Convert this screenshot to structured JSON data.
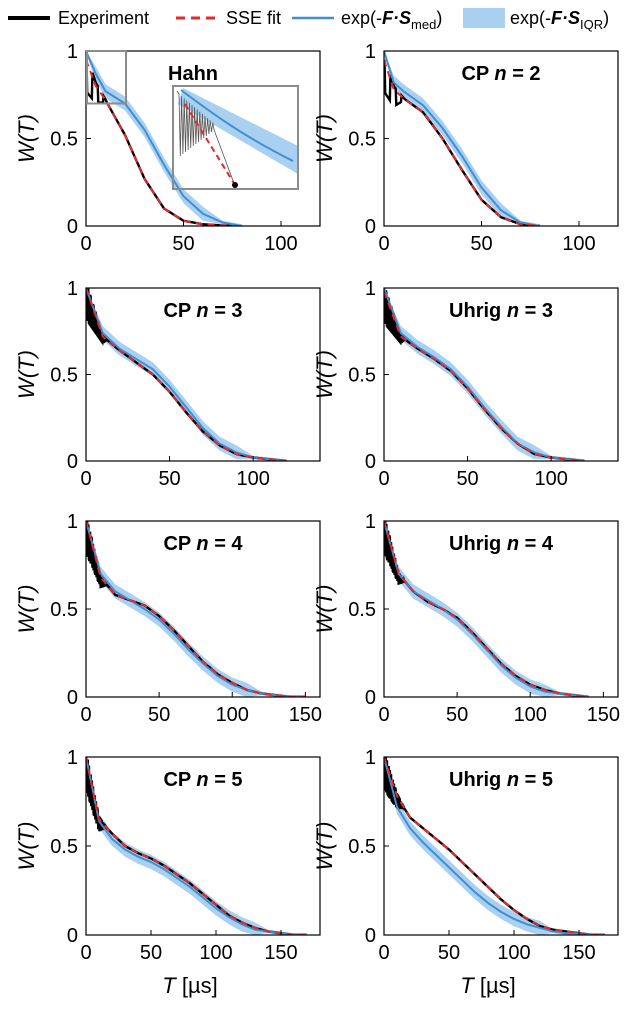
{
  "legend": {
    "experiment": "Experiment",
    "sse_fit": "SSE fit",
    "exp_med_prefix": "exp(-",
    "exp_med_bold": "F·S",
    "exp_med_sub": "med",
    "exp_med_suffix": ")",
    "exp_iqr_prefix": "exp(-",
    "exp_iqr_bold": "F·S",
    "exp_iqr_sub": "IQR",
    "exp_iqr_suffix": ")"
  },
  "colors": {
    "experiment": "#000000",
    "sse_fit": "#e8282b",
    "median": "#3f8fd2",
    "iqr": "#a9d0f0",
    "axis": "#000000",
    "inset_box": "#8c8c8c"
  },
  "axes": {
    "ylabel_prefix": "W(",
    "ylabel_var": "T",
    "ylabel_suffix": ")",
    "xlabel_var": "T",
    "xlabel_unit": " [µs]"
  },
  "chart_data": [
    {
      "type": "line",
      "title_plain": "Hahn",
      "title_n": "",
      "title_rest": "",
      "xlim": [
        0,
        120
      ],
      "ylim": [
        0,
        1
      ],
      "xticks": [
        0,
        50,
        100
      ],
      "yticks": [
        0,
        0.5,
        1
      ],
      "yticklabels": [
        "0",
        "0.5",
        "1"
      ],
      "inset": true,
      "series": [
        {
          "name": "Experiment",
          "x": [
            0,
            5,
            10,
            20,
            30,
            40,
            50,
            60,
            75
          ],
          "y": [
            0.95,
            0.8,
            0.72,
            0.52,
            0.27,
            0.1,
            0.03,
            0.01,
            0
          ]
        },
        {
          "name": "SSE fit",
          "x": [
            0,
            5,
            10,
            20,
            30,
            40,
            50,
            60,
            75
          ],
          "y": [
            0.95,
            0.8,
            0.72,
            0.52,
            0.27,
            0.1,
            0.03,
            0.01,
            0
          ]
        },
        {
          "name": "exp(-F·S_med)",
          "x": [
            0,
            5,
            10,
            20,
            30,
            40,
            50,
            60,
            70,
            80
          ],
          "y": [
            1,
            0.87,
            0.77,
            0.7,
            0.55,
            0.35,
            0.17,
            0.07,
            0.02,
            0
          ]
        }
      ]
    },
    {
      "type": "line",
      "title_plain": "CP ",
      "title_n": "n",
      "title_rest": " = 2",
      "xlim": [
        0,
        120
      ],
      "ylim": [
        0,
        1
      ],
      "xticks": [
        0,
        50,
        100
      ],
      "yticks": [
        0,
        0.5,
        1
      ],
      "yticklabels": [
        "0",
        "0.5",
        "1"
      ],
      "inset": false,
      "series": [
        {
          "name": "Experiment",
          "x": [
            0,
            5,
            10,
            20,
            30,
            40,
            50,
            60,
            70,
            80
          ],
          "y": [
            0.95,
            0.78,
            0.73,
            0.65,
            0.5,
            0.32,
            0.15,
            0.05,
            0.01,
            0
          ]
        },
        {
          "name": "SSE fit",
          "x": [
            0,
            5,
            10,
            20,
            30,
            40,
            50,
            60,
            70,
            80
          ],
          "y": [
            0.95,
            0.78,
            0.73,
            0.65,
            0.5,
            0.32,
            0.15,
            0.05,
            0.01,
            0
          ]
        },
        {
          "name": "exp(-F·S_med)",
          "x": [
            0,
            5,
            10,
            20,
            30,
            40,
            50,
            60,
            70,
            80
          ],
          "y": [
            1,
            0.82,
            0.77,
            0.69,
            0.56,
            0.4,
            0.22,
            0.09,
            0.02,
            0
          ]
        }
      ]
    },
    {
      "type": "line",
      "title_plain": "CP ",
      "title_n": "n",
      "title_rest": " = 3",
      "xlim": [
        0,
        140
      ],
      "ylim": [
        0,
        1
      ],
      "xticks": [
        0,
        50,
        100
      ],
      "yticks": [
        0,
        0.5,
        1
      ],
      "yticklabels": [
        "0",
        "0.5",
        "1"
      ],
      "inset": false,
      "series": [
        {
          "name": "Experiment",
          "x": [
            0,
            10,
            20,
            30,
            40,
            50,
            60,
            70,
            80,
            90,
            100,
            110,
            120
          ],
          "y": [
            1,
            0.72,
            0.64,
            0.57,
            0.5,
            0.4,
            0.28,
            0.17,
            0.09,
            0.04,
            0.02,
            0.01,
            0
          ]
        },
        {
          "name": "SSE fit",
          "x": [
            0,
            10,
            20,
            30,
            40,
            50,
            60,
            70,
            80,
            90,
            100,
            110,
            120
          ],
          "y": [
            1,
            0.72,
            0.64,
            0.57,
            0.5,
            0.4,
            0.28,
            0.17,
            0.09,
            0.04,
            0.02,
            0.01,
            0
          ]
        },
        {
          "name": "exp(-F·S_med)",
          "x": [
            0,
            10,
            20,
            30,
            40,
            50,
            60,
            70,
            80,
            90,
            100,
            110,
            120
          ],
          "y": [
            1,
            0.74,
            0.65,
            0.59,
            0.53,
            0.43,
            0.31,
            0.19,
            0.1,
            0.05,
            0.02,
            0.01,
            0
          ]
        }
      ]
    },
    {
      "type": "line",
      "title_plain": "Uhrig ",
      "title_n": "n",
      "title_rest": " = 3",
      "xlim": [
        0,
        140
      ],
      "ylim": [
        0,
        1
      ],
      "xticks": [
        0,
        50,
        100
      ],
      "yticks": [
        0,
        0.5,
        1
      ],
      "yticklabels": [
        "0",
        "0.5",
        "1"
      ],
      "inset": false,
      "series": [
        {
          "name": "Experiment",
          "x": [
            0,
            10,
            20,
            30,
            40,
            50,
            60,
            70,
            80,
            90,
            100,
            110,
            120
          ],
          "y": [
            0.98,
            0.72,
            0.65,
            0.59,
            0.52,
            0.42,
            0.3,
            0.19,
            0.1,
            0.04,
            0.02,
            0.01,
            0
          ]
        },
        {
          "name": "SSE fit",
          "x": [
            0,
            10,
            20,
            30,
            40,
            50,
            60,
            70,
            80,
            90,
            100,
            110,
            120
          ],
          "y": [
            0.98,
            0.72,
            0.65,
            0.59,
            0.52,
            0.42,
            0.3,
            0.19,
            0.1,
            0.04,
            0.02,
            0.01,
            0
          ]
        },
        {
          "name": "exp(-F·S_med)",
          "x": [
            0,
            10,
            20,
            30,
            40,
            50,
            60,
            70,
            80,
            90,
            100,
            110,
            120
          ],
          "y": [
            1,
            0.74,
            0.66,
            0.6,
            0.53,
            0.43,
            0.31,
            0.2,
            0.1,
            0.05,
            0.02,
            0.01,
            0
          ]
        }
      ]
    },
    {
      "type": "line",
      "title_plain": "CP ",
      "title_n": "n",
      "title_rest": " = 4",
      "xlim": [
        0,
        160
      ],
      "ylim": [
        0,
        1
      ],
      "xticks": [
        0,
        50,
        100,
        150
      ],
      "yticks": [
        0,
        0.5,
        1
      ],
      "yticklabels": [
        "0",
        "0.5",
        "1"
      ],
      "inset": false,
      "series": [
        {
          "name": "Experiment",
          "x": [
            0,
            10,
            20,
            30,
            40,
            50,
            60,
            70,
            80,
            90,
            100,
            110,
            120,
            130,
            140,
            150
          ],
          "y": [
            1,
            0.68,
            0.58,
            0.55,
            0.52,
            0.46,
            0.38,
            0.29,
            0.2,
            0.13,
            0.08,
            0.04,
            0.02,
            0.01,
            0,
            0
          ]
        },
        {
          "name": "SSE fit",
          "x": [
            0,
            10,
            20,
            30,
            40,
            50,
            60,
            70,
            80,
            90,
            100,
            110,
            120,
            130,
            140,
            150
          ],
          "y": [
            1,
            0.68,
            0.58,
            0.55,
            0.52,
            0.46,
            0.38,
            0.29,
            0.2,
            0.13,
            0.08,
            0.04,
            0.02,
            0.01,
            0,
            0
          ]
        },
        {
          "name": "exp(-F·S_med)",
          "x": [
            0,
            10,
            20,
            30,
            40,
            50,
            60,
            70,
            80,
            90,
            100,
            110,
            120,
            130,
            140,
            150
          ],
          "y": [
            1,
            0.7,
            0.6,
            0.55,
            0.5,
            0.44,
            0.36,
            0.27,
            0.19,
            0.12,
            0.07,
            0.04,
            0.02,
            0.01,
            0,
            0
          ]
        }
      ]
    },
    {
      "type": "line",
      "title_plain": "Uhrig ",
      "title_n": "n",
      "title_rest": " = 4",
      "xlim": [
        0,
        160
      ],
      "ylim": [
        0,
        1
      ],
      "xticks": [
        0,
        50,
        100,
        150
      ],
      "yticks": [
        0,
        0.5,
        1
      ],
      "yticklabels": [
        "0",
        "0.5",
        "1"
      ],
      "inset": false,
      "series": [
        {
          "name": "Experiment",
          "x": [
            0,
            10,
            20,
            30,
            40,
            50,
            60,
            70,
            80,
            90,
            100,
            110,
            120,
            130,
            140
          ],
          "y": [
            1,
            0.7,
            0.6,
            0.54,
            0.5,
            0.45,
            0.37,
            0.28,
            0.19,
            0.12,
            0.07,
            0.04,
            0.02,
            0.01,
            0
          ]
        },
        {
          "name": "SSE fit",
          "x": [
            0,
            10,
            20,
            30,
            40,
            50,
            60,
            70,
            80,
            90,
            100,
            110,
            120,
            130,
            140
          ],
          "y": [
            1,
            0.7,
            0.6,
            0.54,
            0.5,
            0.45,
            0.37,
            0.28,
            0.19,
            0.12,
            0.07,
            0.04,
            0.02,
            0.01,
            0
          ]
        },
        {
          "name": "exp(-F·S_med)",
          "x": [
            0,
            10,
            20,
            30,
            40,
            50,
            60,
            70,
            80,
            90,
            100,
            110,
            120,
            130,
            140
          ],
          "y": [
            1,
            0.7,
            0.6,
            0.55,
            0.5,
            0.44,
            0.36,
            0.27,
            0.18,
            0.11,
            0.06,
            0.03,
            0.02,
            0.01,
            0
          ]
        }
      ]
    },
    {
      "type": "line",
      "title_plain": "CP ",
      "title_n": "n",
      "title_rest": " = 5",
      "xlim": [
        0,
        180
      ],
      "ylim": [
        0,
        1
      ],
      "xticks": [
        0,
        50,
        100,
        150
      ],
      "yticks": [
        0,
        0.5,
        1
      ],
      "yticklabels": [
        "0",
        "0.5",
        "1"
      ],
      "inset": false,
      "series": [
        {
          "name": "Experiment",
          "x": [
            0,
            10,
            20,
            30,
            40,
            50,
            60,
            70,
            80,
            90,
            100,
            110,
            120,
            130,
            140,
            150,
            160,
            170
          ],
          "y": [
            1,
            0.65,
            0.57,
            0.5,
            0.46,
            0.43,
            0.39,
            0.34,
            0.29,
            0.23,
            0.17,
            0.11,
            0.07,
            0.04,
            0.02,
            0.01,
            0,
            0
          ]
        },
        {
          "name": "SSE fit",
          "x": [
            0,
            10,
            20,
            30,
            40,
            50,
            60,
            70,
            80,
            90,
            100,
            110,
            120,
            130,
            140,
            150,
            160,
            170
          ],
          "y": [
            1,
            0.65,
            0.57,
            0.5,
            0.46,
            0.43,
            0.39,
            0.34,
            0.29,
            0.23,
            0.17,
            0.11,
            0.07,
            0.04,
            0.02,
            0.01,
            0,
            0
          ]
        },
        {
          "name": "exp(-F·S_med)",
          "x": [
            0,
            10,
            20,
            30,
            40,
            50,
            60,
            70,
            80,
            90,
            100,
            110,
            120,
            130,
            140,
            150,
            160,
            170
          ],
          "y": [
            1,
            0.64,
            0.54,
            0.48,
            0.44,
            0.41,
            0.37,
            0.32,
            0.27,
            0.21,
            0.15,
            0.1,
            0.06,
            0.03,
            0.02,
            0.01,
            0,
            0
          ]
        }
      ]
    },
    {
      "type": "line",
      "title_plain": "Uhrig ",
      "title_n": "n",
      "title_rest": " = 5",
      "xlim": [
        0,
        180
      ],
      "ylim": [
        0,
        1
      ],
      "xticks": [
        0,
        50,
        100,
        150
      ],
      "yticks": [
        0,
        0.5,
        1
      ],
      "yticklabels": [
        "0",
        "0.5",
        "1"
      ],
      "inset": false,
      "series": [
        {
          "name": "Experiment",
          "x": [
            0,
            10,
            20,
            30,
            40,
            50,
            60,
            70,
            80,
            90,
            100,
            110,
            120,
            130,
            140,
            150,
            160,
            170
          ],
          "y": [
            1,
            0.78,
            0.66,
            0.6,
            0.54,
            0.48,
            0.41,
            0.34,
            0.27,
            0.2,
            0.14,
            0.09,
            0.05,
            0.03,
            0.02,
            0.01,
            0,
            0
          ]
        },
        {
          "name": "SSE fit",
          "x": [
            0,
            10,
            20,
            30,
            40,
            50,
            60,
            70,
            80,
            90,
            100,
            110,
            120,
            130,
            140,
            150,
            160,
            170
          ],
          "y": [
            1,
            0.78,
            0.66,
            0.6,
            0.54,
            0.48,
            0.41,
            0.34,
            0.27,
            0.2,
            0.14,
            0.09,
            0.05,
            0.03,
            0.02,
            0.01,
            0,
            0
          ]
        },
        {
          "name": "exp(-F·S_med)",
          "x": [
            0,
            10,
            20,
            30,
            40,
            50,
            60,
            70,
            80,
            90,
            100,
            110,
            120,
            130,
            140,
            150,
            160,
            170
          ],
          "y": [
            1,
            0.72,
            0.6,
            0.52,
            0.45,
            0.38,
            0.31,
            0.24,
            0.18,
            0.13,
            0.09,
            0.06,
            0.04,
            0.02,
            0.01,
            0.01,
            0,
            0
          ]
        }
      ]
    }
  ]
}
